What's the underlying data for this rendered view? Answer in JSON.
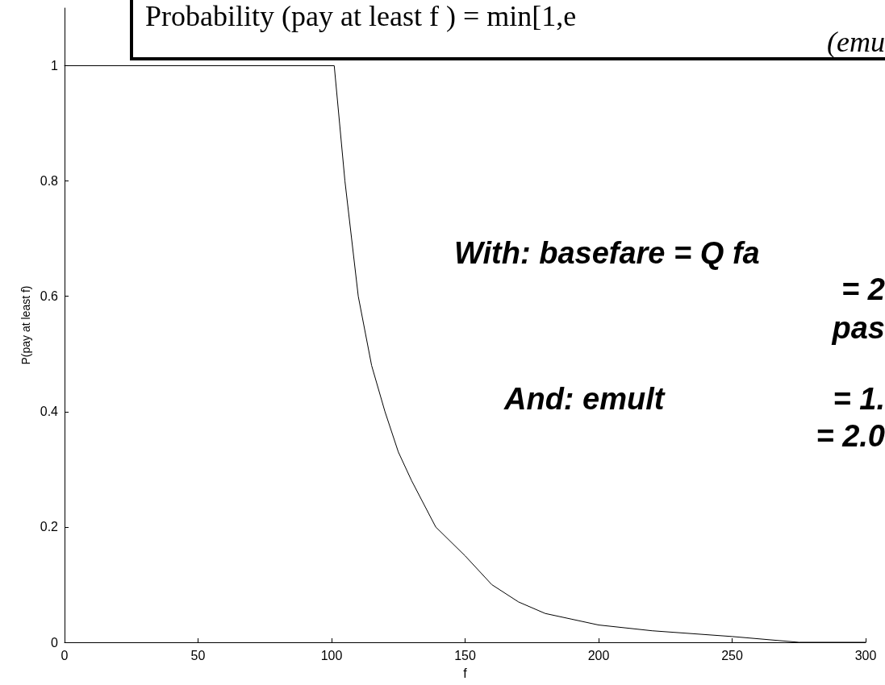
{
  "chart_data": {
    "type": "line",
    "xlabel": "f",
    "ylabel": "P(pay at least f)",
    "annotations": [
      "Probability (pay at least f ) = min[1,e",
      "(emu",
      "With: basefare = Q fa",
      "= 2",
      "pas",
      "And: emult",
      "= 1.",
      "= 2.0"
    ],
    "xlim": [
      0,
      300
    ],
    "xticks": [
      0,
      50,
      100,
      150,
      200,
      250,
      300
    ],
    "ylim": [
      0,
      1.1
    ],
    "yticks": [
      0,
      0.2,
      0.4,
      0.6,
      0.8,
      1
    ],
    "grid": false,
    "marker": "none",
    "line_style": "solid",
    "series": [
      {
        "color": "#000000",
        "x": [
          0,
          101,
          103,
          105,
          110,
          115,
          120,
          125,
          130,
          139,
          150,
          160,
          170,
          180,
          190,
          200,
          220,
          250,
          275,
          300
        ],
        "values": [
          1,
          1,
          0.9,
          0.8,
          0.6,
          0.48,
          0.4,
          0.33,
          0.28,
          0.2,
          0.15,
          0.1,
          0.07,
          0.05,
          0.04,
          0.03,
          0.02,
          0.01,
          0,
          0
        ]
      }
    ]
  }
}
